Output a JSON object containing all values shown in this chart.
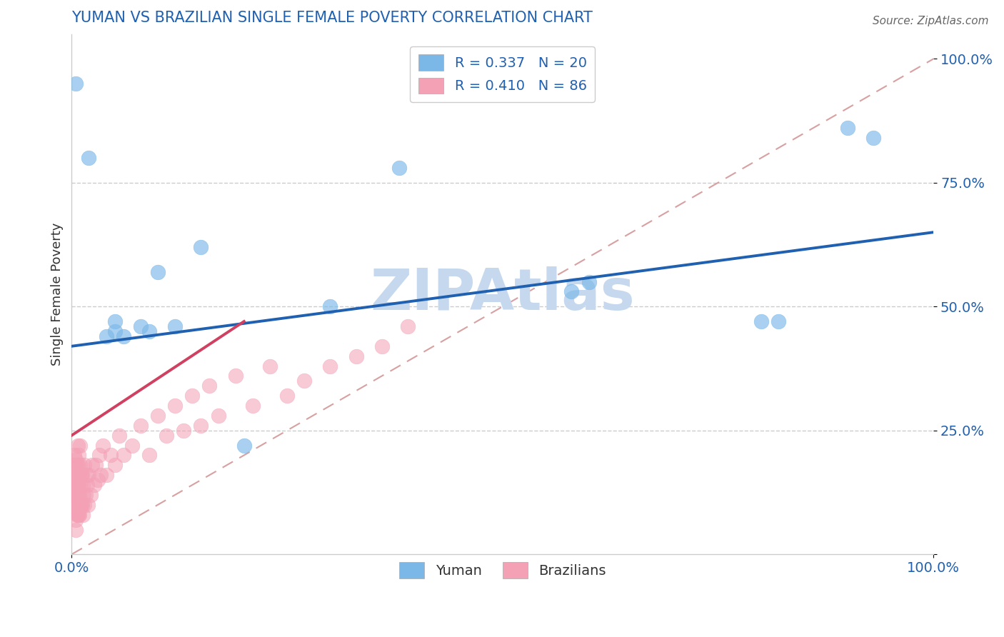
{
  "title": "YUMAN VS BRAZILIAN SINGLE FEMALE POVERTY CORRELATION CHART",
  "source": "Source: ZipAtlas.com",
  "ylabel": "Single Female Poverty",
  "legend_label1": "R = 0.337   N = 20",
  "legend_label2": "R = 0.410   N = 86",
  "legend_label3": "Yuman",
  "legend_label4": "Brazilians",
  "blue_scatter_color": "#7bb8e8",
  "pink_scatter_color": "#f4a0b5",
  "blue_line_color": "#2060b0",
  "pink_line_color": "#d04060",
  "diag_color": "#d8a0a0",
  "watermark": "ZIPAtlas",
  "watermark_color": "#c5d8ee",
  "title_color": "#2060b0",
  "tick_color": "#2060b0",
  "background_color": "#ffffff",
  "grid_color": "#cccccc",
  "yuman_x": [
    0.005,
    0.02,
    0.04,
    0.05,
    0.05,
    0.06,
    0.08,
    0.09,
    0.1,
    0.12,
    0.15,
    0.2,
    0.3,
    0.38,
    0.58,
    0.6,
    0.8,
    0.82,
    0.9,
    0.93
  ],
  "yuman_y": [
    0.95,
    0.8,
    0.44,
    0.45,
    0.47,
    0.44,
    0.46,
    0.45,
    0.57,
    0.46,
    0.62,
    0.22,
    0.5,
    0.78,
    0.53,
    0.55,
    0.47,
    0.47,
    0.86,
    0.84
  ],
  "brazilian_x": [
    0.003,
    0.003,
    0.003,
    0.003,
    0.003,
    0.004,
    0.004,
    0.004,
    0.004,
    0.004,
    0.005,
    0.005,
    0.005,
    0.005,
    0.005,
    0.005,
    0.005,
    0.005,
    0.006,
    0.006,
    0.006,
    0.006,
    0.006,
    0.007,
    0.007,
    0.007,
    0.007,
    0.007,
    0.008,
    0.008,
    0.008,
    0.008,
    0.009,
    0.009,
    0.009,
    0.01,
    0.01,
    0.01,
    0.01,
    0.011,
    0.011,
    0.012,
    0.012,
    0.013,
    0.013,
    0.014,
    0.015,
    0.015,
    0.016,
    0.017,
    0.018,
    0.019,
    0.02,
    0.022,
    0.024,
    0.026,
    0.028,
    0.03,
    0.032,
    0.034,
    0.036,
    0.04,
    0.045,
    0.05,
    0.055,
    0.06,
    0.07,
    0.08,
    0.09,
    0.1,
    0.11,
    0.12,
    0.13,
    0.14,
    0.15,
    0.16,
    0.17,
    0.19,
    0.21,
    0.23,
    0.25,
    0.27,
    0.3,
    0.33,
    0.36,
    0.39
  ],
  "brazilian_y": [
    0.12,
    0.14,
    0.16,
    0.18,
    0.2,
    0.1,
    0.12,
    0.14,
    0.16,
    0.18,
    0.05,
    0.07,
    0.09,
    0.11,
    0.13,
    0.15,
    0.17,
    0.19,
    0.08,
    0.1,
    0.12,
    0.14,
    0.18,
    0.08,
    0.12,
    0.14,
    0.18,
    0.22,
    0.08,
    0.1,
    0.14,
    0.2,
    0.08,
    0.12,
    0.16,
    0.1,
    0.14,
    0.18,
    0.22,
    0.1,
    0.16,
    0.1,
    0.16,
    0.08,
    0.14,
    0.12,
    0.1,
    0.18,
    0.12,
    0.16,
    0.14,
    0.1,
    0.16,
    0.12,
    0.18,
    0.14,
    0.18,
    0.15,
    0.2,
    0.16,
    0.22,
    0.16,
    0.2,
    0.18,
    0.24,
    0.2,
    0.22,
    0.26,
    0.2,
    0.28,
    0.24,
    0.3,
    0.25,
    0.32,
    0.26,
    0.34,
    0.28,
    0.36,
    0.3,
    0.38,
    0.32,
    0.35,
    0.38,
    0.4,
    0.42,
    0.46
  ],
  "xlim": [
    0.0,
    1.0
  ],
  "ylim": [
    0.0,
    1.05
  ],
  "yticks": [
    0.0,
    0.25,
    0.5,
    0.75,
    1.0
  ],
  "ytick_labels": [
    "",
    "25.0%",
    "50.0%",
    "75.0%",
    "100.0%"
  ],
  "xticks": [
    0.0,
    1.0
  ],
  "xtick_labels": [
    "0.0%",
    "100.0%"
  ],
  "blue_trend_x0": 0.0,
  "blue_trend_y0": 0.42,
  "blue_trend_x1": 1.0,
  "blue_trend_y1": 0.65,
  "pink_trend_x0": 0.0,
  "pink_trend_y0": 0.24,
  "pink_trend_x1": 0.2,
  "pink_trend_y1": 0.47
}
